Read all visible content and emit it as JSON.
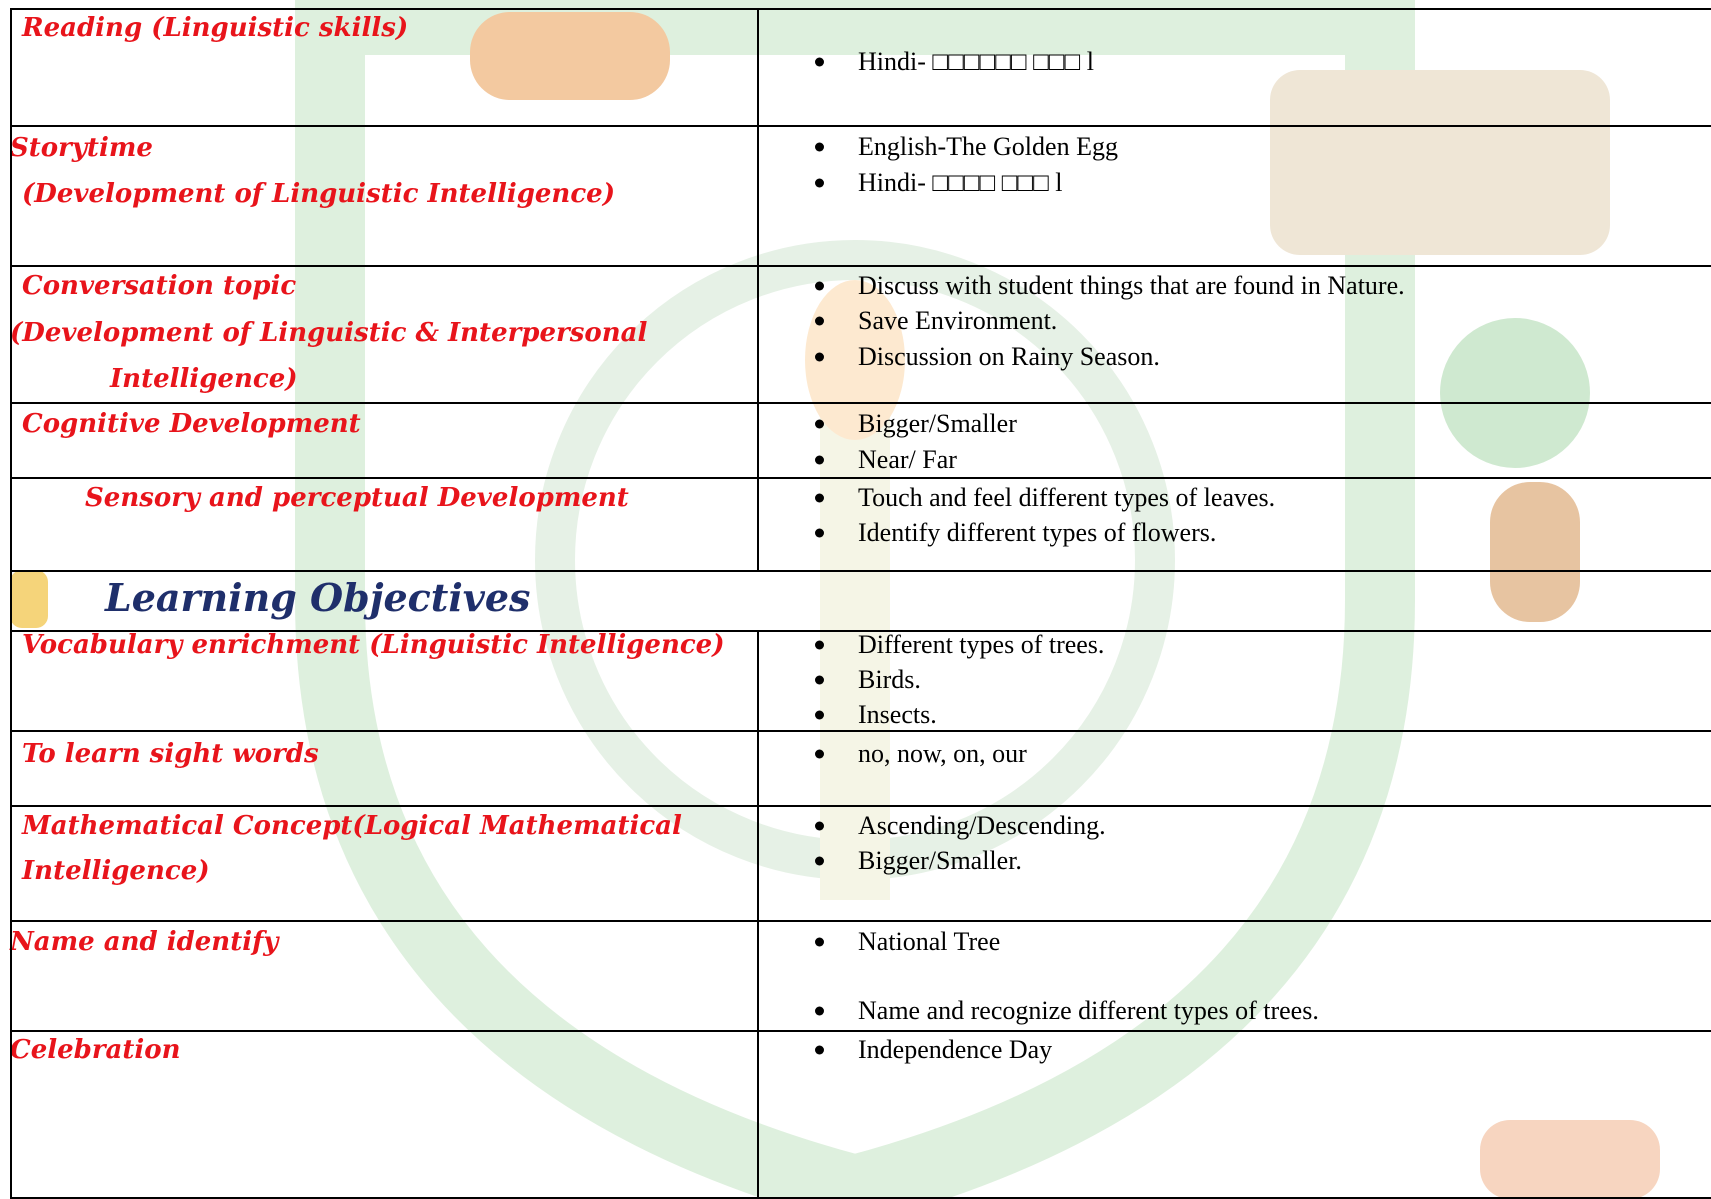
{
  "table": {
    "rows": [
      {
        "label": [
          "Reading (Linguistic skills)"
        ],
        "items": [
          "Hindi- □□□□□□ □□□ l"
        ]
      },
      {
        "label": [
          "Storytime",
          "(Development of Linguistic Intelligence)"
        ],
        "items": [
          "English-The Golden Egg",
          "Hindi- □□□□ □□□ l"
        ]
      },
      {
        "label": [
          "Conversation topic",
          "(Development of Linguistic & Interpersonal",
          "Intelligence)"
        ],
        "items": [
          "Discuss with student things that are found in Nature.",
          "Save Environment.",
          "Discussion on Rainy Season."
        ]
      },
      {
        "label": [
          "Cognitive Development"
        ],
        "items": [
          "Bigger/Smaller",
          "Near/ Far"
        ]
      },
      {
        "label": [
          "Sensory and perceptual Development"
        ],
        "items": [
          "Touch and feel different types of leaves.",
          "Identify different types of flowers."
        ]
      }
    ]
  },
  "heading": "Learning Objectives",
  "objectives": {
    "rows": [
      {
        "label": [
          "Vocabulary enrichment (Linguistic Intelligence)"
        ],
        "items": [
          "Different types of trees.",
          "Birds.",
          "Insects."
        ]
      },
      {
        "label": [
          "To learn sight words"
        ],
        "items": [
          "no, now, on, our"
        ]
      },
      {
        "label": [
          "Mathematical Concept(Logical Mathematical",
          "Intelligence)"
        ],
        "items": [
          "Ascending/Descending.",
          "Bigger/Smaller."
        ]
      },
      {
        "label": [
          "Name and identify"
        ],
        "items": [
          "National Tree",
          "Name and recognize different types of trees."
        ]
      },
      {
        "label": [
          "Celebration"
        ],
        "items": [
          "Independence Day"
        ]
      }
    ]
  }
}
